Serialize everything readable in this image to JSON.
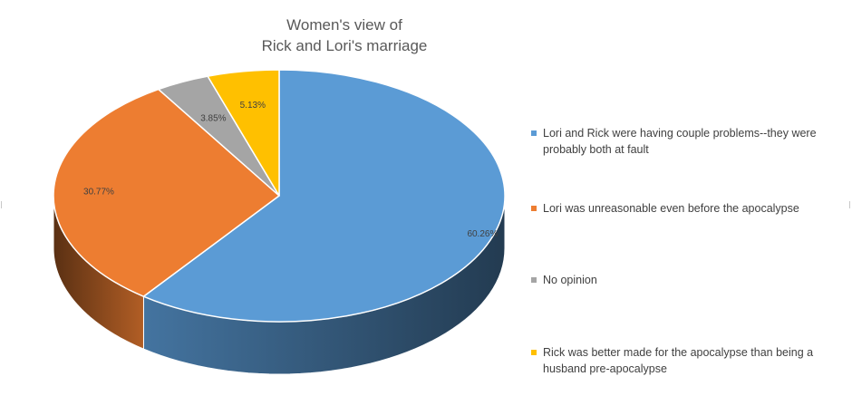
{
  "chart_data": {
    "type": "pie",
    "style": "3d",
    "title": [
      "Women's view of",
      "Rick and Lori's marriage"
    ],
    "legend_position": "right",
    "slices": [
      {
        "label": "Lori and Rick were having couple problems--they were probably both at fault",
        "value": 60.26,
        "display": "60.26%",
        "color": "#5b9bd5"
      },
      {
        "label": "Lori was unreasonable even before the apocalypse",
        "value": 30.77,
        "display": "30.77%",
        "color": "#ed7d31"
      },
      {
        "label": "No opinion",
        "value": 3.85,
        "display": "3.85%",
        "color": "#a5a5a5"
      },
      {
        "label": "Rick was better made for the apocalypse than being a husband pre-apocalypse",
        "value": 5.13,
        "display": "5.13%",
        "color": "#ffc000"
      }
    ]
  }
}
